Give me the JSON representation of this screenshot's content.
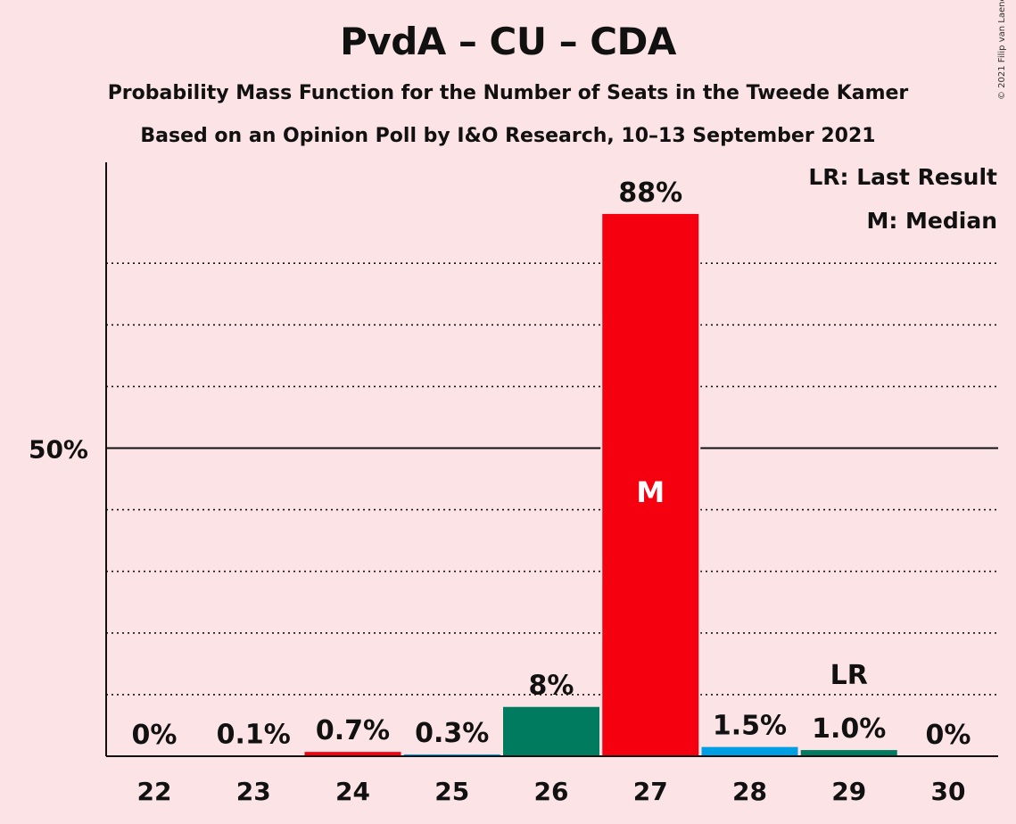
{
  "header": {
    "title": "PvdA – CU – CDA",
    "subtitle": "Probability Mass Function for the Number of Seats in the Tweede Kamer",
    "subtitle2": "Based on an Opinion Poll by I&O Research, 10–13 September 2021",
    "copyright": "© 2021 Filip van Laenen"
  },
  "legend": {
    "last_result": "LR: Last Result",
    "median": "M: Median"
  },
  "colors": {
    "background": "#FCE4E6",
    "pvda": "#F5000F",
    "cu": "#009FE3",
    "cda": "#007B5F"
  },
  "chart_data": {
    "type": "bar",
    "title": "PvdA – CU – CDA",
    "categories": [
      "22",
      "23",
      "24",
      "25",
      "26",
      "27",
      "28",
      "29",
      "30"
    ],
    "values": [
      0,
      0.1,
      0.7,
      0.3,
      8,
      88,
      1.5,
      1.0,
      0
    ],
    "value_labels": [
      "0%",
      "0.1%",
      "0.7%",
      "0.3%",
      "8%",
      "88%",
      "1.5%",
      "1.0%",
      "0%"
    ],
    "bar_colors": [
      "#F5000F",
      "#009FE3",
      "#F5000F",
      "#009FE3",
      "#007B5F",
      "#F5000F",
      "#009FE3",
      "#007B5F",
      "#F5000F"
    ],
    "ylim": [
      0,
      100
    ],
    "y_ticks": [
      {
        "value": 50,
        "label": "50%"
      }
    ],
    "gridlines": [
      10,
      20,
      30,
      40,
      60,
      70,
      80
    ],
    "median_category": "27",
    "median_marker": "M",
    "last_result_category": "29",
    "last_result_marker": "LR",
    "grid": true,
    "legend_position": "top-right"
  }
}
